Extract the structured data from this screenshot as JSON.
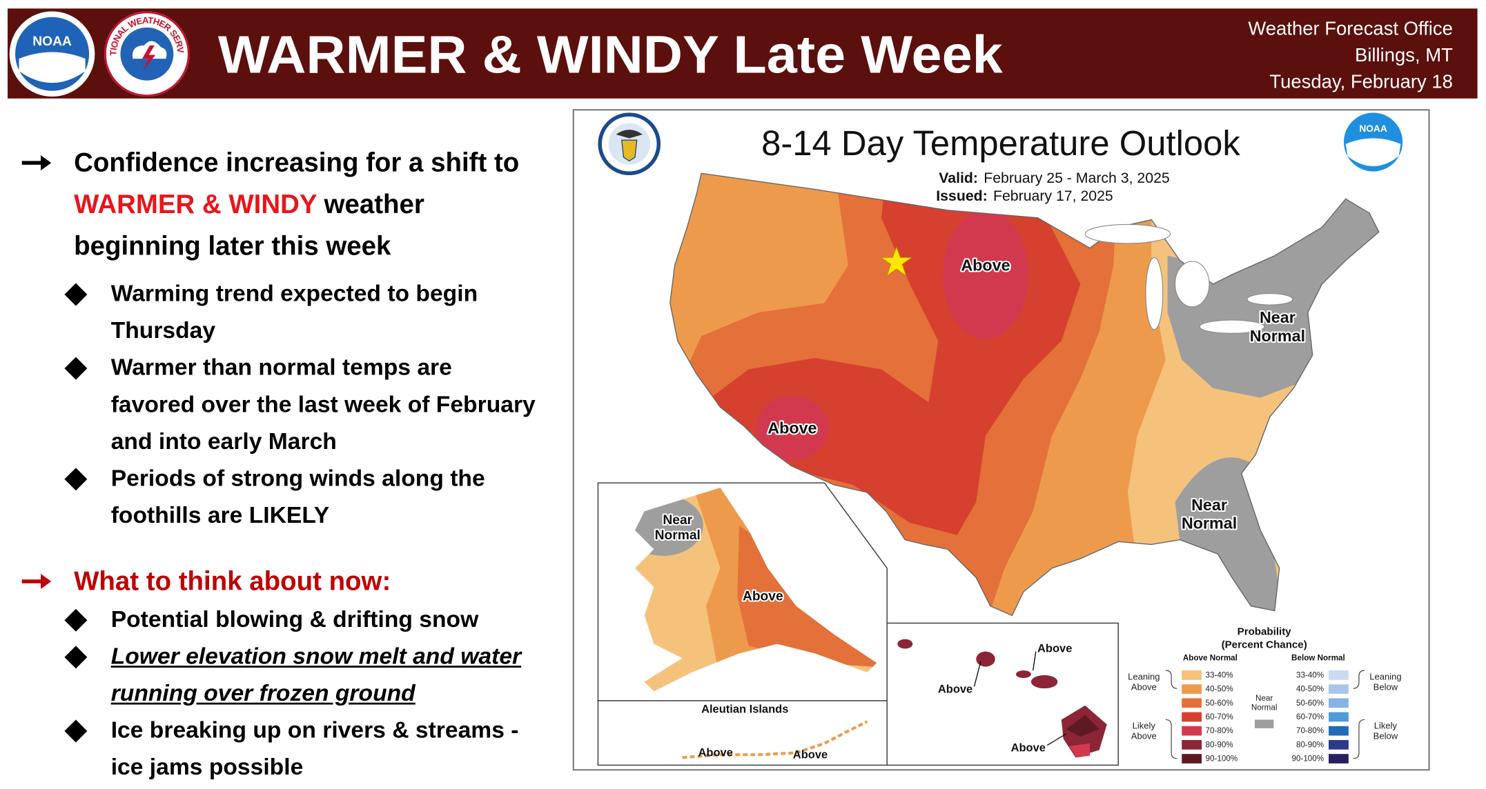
{
  "header": {
    "noaa_logo": "NOAA",
    "nws_logo": "NATIONAL WEATHER SERVICE",
    "title": "WARMER & WINDY Late Week",
    "office": "Weather Forecast Office",
    "location": "Billings, MT",
    "date": "Tuesday, February 18"
  },
  "bullets": {
    "main": {
      "text": [
        "Confidence increasing for a shift to ",
        "WARMER & WINDY",
        " weather beginning later this week"
      ],
      "items": [
        "Warming trend expected to begin Thursday",
        "Warmer than normal temps are favored over the last week of February and into early March",
        "Periods of strong winds along the foothills are LIKELY"
      ]
    },
    "now": {
      "heading": "What to think about now:",
      "items": [
        "Potential blowing & drifting snow",
        "Lower elevation snow melt and water running over frozen ground",
        "Ice breaking up on rivers & streams - ice jams possible"
      ]
    }
  },
  "map": {
    "title": "8-14 Day Temperature Outlook",
    "valid_label": "Valid:",
    "valid": "February 25 - March 3, 2025",
    "issued_label": "Issued:",
    "issued": "February 17, 2025",
    "labels": {
      "us_above_north": "Above",
      "us_above_southwest": "Above",
      "near_normal_northeast": [
        "Near",
        "Normal"
      ],
      "near_normal_southeast": [
        "Near",
        "Normal"
      ],
      "alaska_near_normal": [
        "Near",
        "Normal"
      ],
      "alaska_above": "Above",
      "hawaii_above_north": "Above",
      "hawaii_above_west": "Above",
      "hawaii_above_south": "Above",
      "aleutian_above_west": "Above",
      "aleutian_above_east": "Above"
    },
    "inset": "Aleutian Islands",
    "legend": {
      "title": "Probability",
      "subtitle": "(Percent Chance)",
      "above_header": "Above Normal",
      "below_header": "Below Normal",
      "leaning_above": [
        "Leaning",
        "Above"
      ],
      "likely_above": [
        "Likely",
        "Above"
      ],
      "near_normal": [
        "Near",
        "Normal"
      ],
      "leaning_below": [
        "Leaning",
        "Below"
      ],
      "likely_below": [
        "Likely",
        "Below"
      ],
      "ranges": [
        "33-40%",
        "40-50%",
        "50-60%",
        "60-70%",
        "70-80%",
        "80-90%",
        "90-100%"
      ],
      "above_colors": [
        "#f5c27b",
        "#ee9a4c",
        "#e4703a",
        "#d6402f",
        "#d2394f",
        "#8c2535",
        "#5e1a22"
      ],
      "below_colors": [
        "#c9dbf0",
        "#a9c6ea",
        "#86b3e3",
        "#4f9ad8",
        "#1f6cb5",
        "#2b3a8a",
        "#2a1f5e"
      ],
      "near_color": "#9e9e9e"
    }
  }
}
